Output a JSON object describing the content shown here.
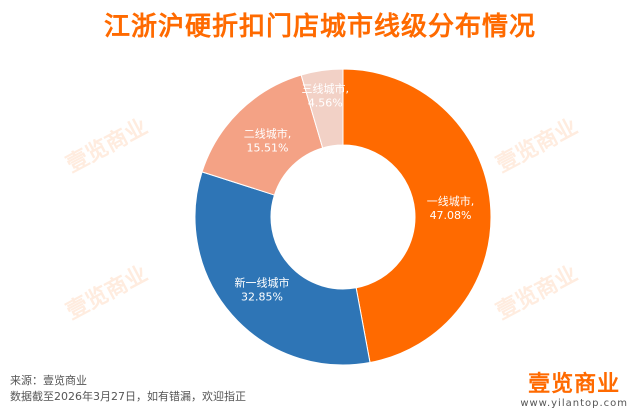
{
  "title": "江浙沪硬折扣门店城市线级分布情况",
  "chart_data": {
    "type": "pie",
    "style": "donut",
    "slices": [
      {
        "label": "一线城市,",
        "pct_text": "47.08%",
        "value": 47.08,
        "color": "#ff6a00"
      },
      {
        "label": "新一线城市",
        "pct_text": "32.85%",
        "value": 32.85,
        "color": "#2e75b6"
      },
      {
        "label": "二线城市,",
        "pct_text": "15.51%",
        "value": 15.51,
        "color": "#f4a285"
      },
      {
        "label": "三线城市,",
        "pct_text": "4.56%",
        "value": 4.56,
        "color": "#f2d1c6"
      }
    ]
  },
  "footer": {
    "source": "来源：壹览商业",
    "note": "数据截至2026年3月27日，如有错漏，欢迎指正"
  },
  "brand": {
    "name": "壹览商业",
    "url": "www.yilantop.com",
    "color": "#ff6a00",
    "watermark_text": "壹览商业"
  },
  "colors": {
    "title": "#ff6a00"
  }
}
